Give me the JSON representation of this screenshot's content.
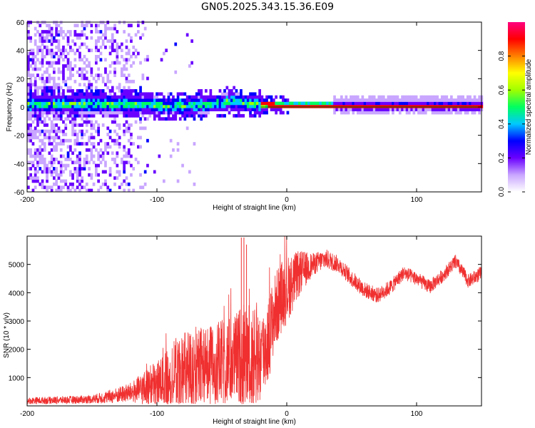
{
  "title": "GN05.2025.343.15.36.E09",
  "chart_data": [
    {
      "type": "heatmap",
      "title": "GN05.2025.343.15.36.E09",
      "xlabel": "Height of straight line (km)",
      "ylabel": "Frequency (Hz)",
      "xlim": [
        -200,
        150
      ],
      "ylim": [
        -60,
        60
      ],
      "xticks": [
        -200,
        -100,
        0,
        100
      ],
      "xtick_labels": [
        "-200",
        "-100",
        "0",
        "100"
      ],
      "yticks": [
        -60,
        -40,
        -20,
        0,
        20,
        40,
        60
      ],
      "ytick_labels": [
        "-60",
        "-40",
        "-20",
        "0",
        "20",
        "40",
        "60"
      ],
      "ridge_center_hz": [
        {
          "x": -200,
          "y": 1
        },
        {
          "x": -150,
          "y": 1
        },
        {
          "x": -120,
          "y": 1
        },
        {
          "x": -100,
          "y": 0
        },
        {
          "x": -75,
          "y": 0
        },
        {
          "x": -60,
          "y": 1
        },
        {
          "x": -45,
          "y": 3
        },
        {
          "x": -35,
          "y": 2
        },
        {
          "x": -25,
          "y": 1
        },
        {
          "x": 0,
          "y": 0
        },
        {
          "x": 50,
          "y": 0
        },
        {
          "x": 100,
          "y": 0
        },
        {
          "x": 150,
          "y": 0
        }
      ],
      "colorbar": {
        "label": "Normalized spectral amplitude",
        "range": [
          0,
          1
        ],
        "ticks": [
          0.0,
          0.2,
          0.4,
          0.6,
          0.8
        ],
        "tick_labels": [
          "0.0",
          "0.2",
          "0.4",
          "0.6",
          "0.8"
        ],
        "colors": [
          "#ffffff",
          "#c9a6ff",
          "#6a00ff",
          "#0000ff",
          "#00c8ff",
          "#00ff60",
          "#a0ff00",
          "#ffff00",
          "#ff8000",
          "#ff0000",
          "#ff0080"
        ]
      }
    },
    {
      "type": "line",
      "xlabel": "Height of straight line (km)",
      "ylabel": "SNR (10 * v/v)",
      "xlim": [
        -200,
        150
      ],
      "ylim": [
        0,
        6000
      ],
      "xticks": [
        -200,
        -100,
        0,
        100
      ],
      "xtick_labels": [
        "-200",
        "-100",
        "0",
        "100"
      ],
      "yticks": [
        1000,
        2000,
        3000,
        4000,
        5000
      ],
      "ytick_labels": [
        "1000",
        "2000",
        "3000",
        "4000",
        "5000"
      ],
      "series": [
        {
          "name": "SNR",
          "color": "#f03030",
          "x": [
            -200,
            -180,
            -160,
            -150,
            -140,
            -130,
            -120,
            -110,
            -100,
            -90,
            -80,
            -70,
            -60,
            -50,
            -40,
            -35,
            -30,
            -25,
            -20,
            -15,
            -10,
            -5,
            0,
            5,
            10,
            20,
            30,
            40,
            50,
            60,
            70,
            80,
            90,
            100,
            110,
            120,
            130,
            140,
            150
          ],
          "y": [
            180,
            200,
            220,
            240,
            300,
            380,
            480,
            600,
            780,
            1000,
            1150,
            1300,
            1350,
            1500,
            1650,
            1800,
            1700,
            1600,
            1700,
            2200,
            3200,
            3800,
            4100,
            4400,
            4700,
            5000,
            5200,
            5000,
            4500,
            4100,
            3900,
            4200,
            4700,
            4500,
            4200,
            4600,
            5100,
            4400,
            4700
          ]
        }
      ],
      "noise_amplitude": [
        {
          "x": -200,
          "y": 120
        },
        {
          "x": -150,
          "y": 150
        },
        {
          "x": -120,
          "y": 350
        },
        {
          "x": -100,
          "y": 900
        },
        {
          "x": -80,
          "y": 1500
        },
        {
          "x": -60,
          "y": 1500
        },
        {
          "x": -40,
          "y": 1600
        },
        {
          "x": -30,
          "y": 2000
        },
        {
          "x": -15,
          "y": 1500
        },
        {
          "x": 0,
          "y": 1200
        },
        {
          "x": 20,
          "y": 400
        },
        {
          "x": 40,
          "y": 300
        },
        {
          "x": 100,
          "y": 250
        },
        {
          "x": 150,
          "y": 250
        }
      ],
      "spikes": [
        {
          "x": -35,
          "y": 5950
        },
        {
          "x": -33,
          "y": 5950
        },
        {
          "x": -31,
          "y": 5700
        }
      ]
    }
  ]
}
